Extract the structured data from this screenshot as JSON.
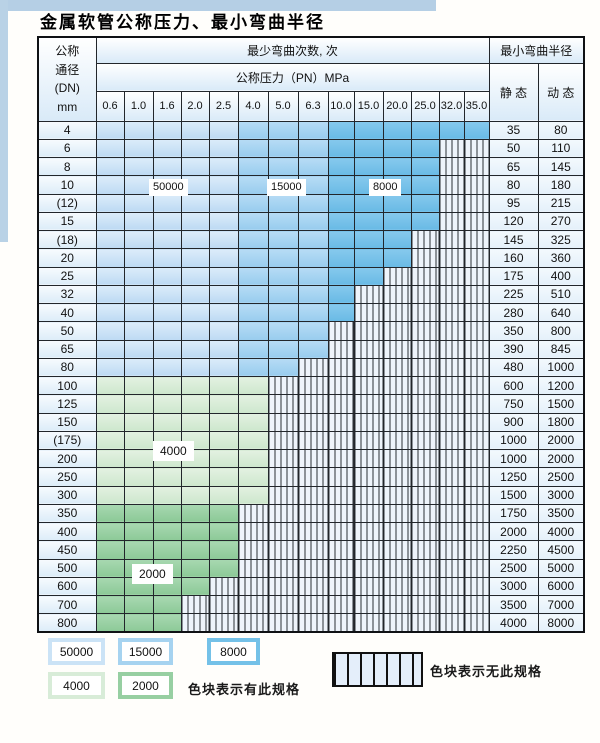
{
  "page_title": "金属软管公称压力、最小弯曲半径",
  "table": {
    "corner_lines": [
      "公称",
      "通径",
      "(DN)",
      "mm"
    ],
    "cycles_header": "最少弯曲次数, 次",
    "pressure_header": "公称压力（PN）MPa",
    "pressures": [
      "0.6",
      "1.0",
      "1.6",
      "2.0",
      "2.5",
      "4.0",
      "5.0",
      "6.3",
      "10.0",
      "15.0",
      "20.0",
      "25.0",
      "32.0",
      "35.0"
    ],
    "radius_header": "最小弯曲半径",
    "static_header": "静 态",
    "dynamic_header": "动 态",
    "rows": [
      {
        "dn": "4",
        "colored": 14,
        "palette": "blue",
        "static": "35",
        "dynamic": "80"
      },
      {
        "dn": "6",
        "colored": 12,
        "palette": "blue",
        "static": "50",
        "dynamic": "110"
      },
      {
        "dn": "8",
        "colored": 12,
        "palette": "blue",
        "static": "65",
        "dynamic": "145"
      },
      {
        "dn": "10",
        "colored": 12,
        "palette": "blue",
        "static": "80",
        "dynamic": "180"
      },
      {
        "dn": "(12)",
        "colored": 12,
        "palette": "blue",
        "static": "95",
        "dynamic": "215"
      },
      {
        "dn": "15",
        "colored": 12,
        "palette": "blue",
        "static": "120",
        "dynamic": "270"
      },
      {
        "dn": "(18)",
        "colored": 11,
        "palette": "blue",
        "static": "145",
        "dynamic": "325"
      },
      {
        "dn": "20",
        "colored": 11,
        "palette": "blue",
        "static": "160",
        "dynamic": "360"
      },
      {
        "dn": "25",
        "colored": 10,
        "palette": "blue",
        "static": "175",
        "dynamic": "400"
      },
      {
        "dn": "32",
        "colored": 9,
        "palette": "blue",
        "static": "225",
        "dynamic": "510"
      },
      {
        "dn": "40",
        "colored": 9,
        "palette": "blue",
        "static": "280",
        "dynamic": "640"
      },
      {
        "dn": "50",
        "colored": 8,
        "palette": "blue",
        "static": "350",
        "dynamic": "800"
      },
      {
        "dn": "65",
        "colored": 8,
        "palette": "blue",
        "static": "390",
        "dynamic": "845"
      },
      {
        "dn": "80",
        "colored": 7,
        "palette": "blue",
        "static": "480",
        "dynamic": "1000"
      },
      {
        "dn": "100",
        "colored": 6,
        "palette": "g1",
        "static": "600",
        "dynamic": "1200"
      },
      {
        "dn": "125",
        "colored": 6,
        "palette": "g1",
        "static": "750",
        "dynamic": "1500"
      },
      {
        "dn": "150",
        "colored": 6,
        "palette": "g1",
        "static": "900",
        "dynamic": "1800"
      },
      {
        "dn": "(175)",
        "colored": 6,
        "palette": "g1",
        "static": "1000",
        "dynamic": "2000"
      },
      {
        "dn": "200",
        "colored": 6,
        "palette": "g1",
        "static": "1000",
        "dynamic": "2000"
      },
      {
        "dn": "250",
        "colored": 6,
        "palette": "g1",
        "static": "1250",
        "dynamic": "2500"
      },
      {
        "dn": "300",
        "colored": 6,
        "palette": "g1",
        "static": "1500",
        "dynamic": "3000"
      },
      {
        "dn": "350",
        "colored": 5,
        "palette": "g2",
        "static": "1750",
        "dynamic": "3500"
      },
      {
        "dn": "400",
        "colored": 5,
        "palette": "g2",
        "static": "2000",
        "dynamic": "4000"
      },
      {
        "dn": "450",
        "colored": 5,
        "palette": "g2",
        "static": "2250",
        "dynamic": "4500"
      },
      {
        "dn": "500",
        "colored": 5,
        "palette": "g2",
        "static": "2500",
        "dynamic": "5000"
      },
      {
        "dn": "600",
        "colored": 4,
        "palette": "g2",
        "static": "3000",
        "dynamic": "6000"
      },
      {
        "dn": "700",
        "colored": 3,
        "palette": "g2",
        "static": "3500",
        "dynamic": "7000"
      },
      {
        "dn": "800",
        "colored": 3,
        "palette": "g2",
        "static": "4000",
        "dynamic": "8000"
      }
    ]
  },
  "overlay_labels": [
    {
      "text": "50000"
    },
    {
      "text": "15000"
    },
    {
      "text": "8000"
    },
    {
      "text": "4000"
    },
    {
      "text": "2000"
    }
  ],
  "legend": {
    "items": [
      {
        "label": "50000",
        "color_key": "blue_50000"
      },
      {
        "label": "15000",
        "color_key": "blue_15000"
      },
      {
        "label": "8000",
        "color_key": "blue_8000"
      },
      {
        "label": "4000",
        "color_key": "green_4000"
      },
      {
        "label": "2000",
        "color_key": "green_2000"
      }
    ],
    "has_spec_text": "色块表示有此规格",
    "no_spec_text": "色块表示无此规格"
  },
  "colors": {
    "blue_50000": "#cbe3f6",
    "blue_15000": "#a6d3f0",
    "blue_8000": "#74c1e8",
    "green_4000": "#d8ecd8",
    "green_2000": "#97cfa2"
  }
}
